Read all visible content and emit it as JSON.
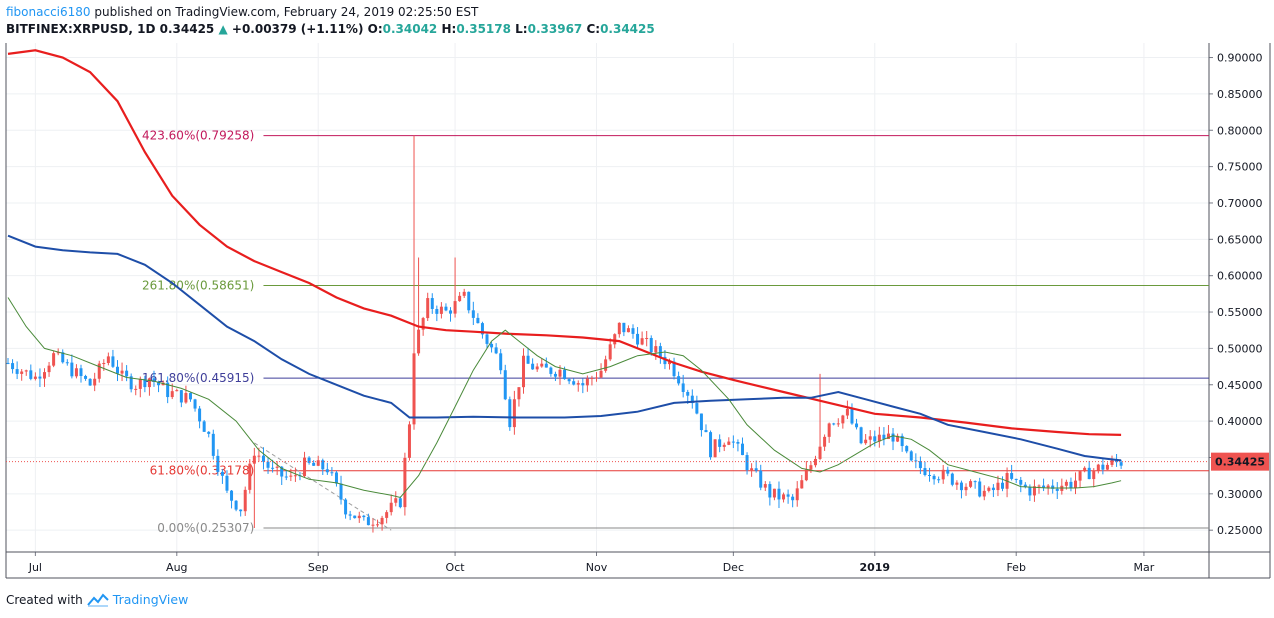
{
  "header": {
    "author": "fibonacci6180",
    "published_text": "published on TradingView.com, February 24, 2019 02:25:50 EST",
    "symbol": "BITFINEX:XRPUSD, 1D",
    "last": "0.34425",
    "arrow": "▲",
    "change": "+0.00379 (+1.11%)",
    "o_label": "O:",
    "o_value": "0.34042",
    "h_label": "H:",
    "h_value": "0.35178",
    "l_label": "L:",
    "l_value": "0.33967",
    "c_label": "C:",
    "c_value": "0.34425"
  },
  "footer": {
    "created_with": "Created with",
    "brand": "TradingView"
  },
  "colors": {
    "up": "#26a69a",
    "candle_up": "#ef5350",
    "candle_down": "#2196f3",
    "ma_red": "#e81e1e",
    "ma_blue": "#1e4ea8",
    "ma_green": "#4a8a3a",
    "fib_pink": "#c2185b",
    "fib_green": "#6a9a3c",
    "fib_blue": "#3f3f9a",
    "fib_red": "#e53935",
    "fib_gray": "#8a8a8a",
    "price_tag": "#ef5350"
  },
  "chart_data": {
    "type": "candlestick",
    "title": "BITFINEX:XRPUSD, 1D",
    "y_axis": {
      "range": [
        0.22,
        0.92
      ],
      "ticks": [
        "0.90000",
        "0.85000",
        "0.80000",
        "0.75000",
        "0.70000",
        "0.65000",
        "0.60000",
        "0.55000",
        "0.50000",
        "0.45000",
        "0.40000",
        "0.35000",
        "0.30000",
        "0.25000"
      ]
    },
    "x_axis": {
      "range_days": [
        0,
        217
      ],
      "ticks": [
        {
          "label": "Jul",
          "day": 6
        },
        {
          "label": "Aug",
          "day": 37
        },
        {
          "label": "Sep",
          "day": 68
        },
        {
          "label": "Oct",
          "day": 98
        },
        {
          "label": "Nov",
          "day": 129
        },
        {
          "label": "Dec",
          "day": 159
        },
        {
          "label": "2019",
          "day": 190,
          "bold": true
        },
        {
          "label": "Feb",
          "day": 221
        },
        {
          "label": "Mar",
          "day": 249
        }
      ]
    },
    "price_anchors": [
      [
        0,
        0.48
      ],
      [
        6,
        0.46
      ],
      [
        10,
        0.49
      ],
      [
        14,
        0.47
      ],
      [
        18,
        0.45
      ],
      [
        22,
        0.49
      ],
      [
        25,
        0.46
      ],
      [
        28,
        0.45
      ],
      [
        31,
        0.46
      ],
      [
        35,
        0.44
      ],
      [
        40,
        0.43
      ],
      [
        44,
        0.38
      ],
      [
        48,
        0.3
      ],
      [
        51,
        0.28
      ],
      [
        54,
        0.36
      ],
      [
        58,
        0.33
      ],
      [
        62,
        0.32
      ],
      [
        65,
        0.34
      ],
      [
        70,
        0.335
      ],
      [
        74,
        0.28
      ],
      [
        78,
        0.26
      ],
      [
        82,
        0.27
      ],
      [
        86,
        0.29
      ],
      [
        88,
        0.4
      ],
      [
        89,
        0.5
      ],
      [
        92,
        0.56
      ],
      [
        96,
        0.55
      ],
      [
        100,
        0.57
      ],
      [
        104,
        0.52
      ],
      [
        108,
        0.48
      ],
      [
        110,
        0.4
      ],
      [
        113,
        0.48
      ],
      [
        117,
        0.47
      ],
      [
        121,
        0.47
      ],
      [
        126,
        0.45
      ],
      [
        130,
        0.47
      ],
      [
        134,
        0.53
      ],
      [
        137,
        0.52
      ],
      [
        141,
        0.5
      ],
      [
        145,
        0.48
      ],
      [
        150,
        0.43
      ],
      [
        154,
        0.36
      ],
      [
        158,
        0.38
      ],
      [
        163,
        0.33
      ],
      [
        167,
        0.3
      ],
      [
        172,
        0.29
      ],
      [
        176,
        0.34
      ],
      [
        180,
        0.4
      ],
      [
        184,
        0.41
      ],
      [
        187,
        0.37
      ],
      [
        190,
        0.375
      ],
      [
        194,
        0.38
      ],
      [
        198,
        0.34
      ],
      [
        203,
        0.33
      ],
      [
        207,
        0.32
      ],
      [
        211,
        0.31
      ],
      [
        215,
        0.3
      ],
      [
        219,
        0.32
      ],
      [
        224,
        0.305
      ],
      [
        228,
        0.31
      ],
      [
        233,
        0.315
      ],
      [
        237,
        0.33
      ],
      [
        241,
        0.34
      ],
      [
        244,
        0.344
      ]
    ],
    "series": [
      {
        "name": "",
        "color": "#e81e1e",
        "points": [
          [
            0,
            0.905
          ],
          [
            6,
            0.91
          ],
          [
            12,
            0.9
          ],
          [
            18,
            0.88
          ],
          [
            24,
            0.84
          ],
          [
            30,
            0.77
          ],
          [
            36,
            0.71
          ],
          [
            42,
            0.67
          ],
          [
            48,
            0.64
          ],
          [
            54,
            0.62
          ],
          [
            60,
            0.605
          ],
          [
            66,
            0.59
          ],
          [
            72,
            0.57
          ],
          [
            78,
            0.555
          ],
          [
            84,
            0.545
          ],
          [
            90,
            0.53
          ],
          [
            96,
            0.525
          ],
          [
            102,
            0.523
          ],
          [
            110,
            0.52
          ],
          [
            118,
            0.518
          ],
          [
            126,
            0.515
          ],
          [
            134,
            0.51
          ],
          [
            140,
            0.495
          ],
          [
            146,
            0.48
          ],
          [
            152,
            0.468
          ],
          [
            160,
            0.455
          ],
          [
            170,
            0.44
          ],
          [
            180,
            0.425
          ],
          [
            190,
            0.41
          ],
          [
            200,
            0.405
          ],
          [
            210,
            0.398
          ],
          [
            220,
            0.39
          ],
          [
            230,
            0.385
          ],
          [
            237,
            0.382
          ],
          [
            244,
            0.381
          ]
        ]
      },
      {
        "name": "",
        "color": "#1e4ea8",
        "points": [
          [
            0,
            0.655
          ],
          [
            6,
            0.64
          ],
          [
            12,
            0.635
          ],
          [
            18,
            0.632
          ],
          [
            24,
            0.63
          ],
          [
            30,
            0.615
          ],
          [
            36,
            0.59
          ],
          [
            42,
            0.56
          ],
          [
            48,
            0.53
          ],
          [
            54,
            0.51
          ],
          [
            60,
            0.485
          ],
          [
            66,
            0.465
          ],
          [
            72,
            0.45
          ],
          [
            78,
            0.435
          ],
          [
            84,
            0.425
          ],
          [
            88,
            0.405
          ],
          [
            94,
            0.405
          ],
          [
            102,
            0.406
          ],
          [
            112,
            0.405
          ],
          [
            122,
            0.405
          ],
          [
            130,
            0.407
          ],
          [
            138,
            0.413
          ],
          [
            146,
            0.425
          ],
          [
            154,
            0.428
          ],
          [
            162,
            0.43
          ],
          [
            170,
            0.432
          ],
          [
            176,
            0.432
          ],
          [
            182,
            0.44
          ],
          [
            188,
            0.43
          ],
          [
            194,
            0.42
          ],
          [
            200,
            0.41
          ],
          [
            206,
            0.395
          ],
          [
            214,
            0.385
          ],
          [
            222,
            0.375
          ],
          [
            230,
            0.362
          ],
          [
            236,
            0.352
          ],
          [
            241,
            0.348
          ],
          [
            244,
            0.346
          ]
        ]
      },
      {
        "name": "",
        "color": "#4a8a3a",
        "points": [
          [
            0,
            0.57
          ],
          [
            4,
            0.53
          ],
          [
            8,
            0.5
          ],
          [
            14,
            0.49
          ],
          [
            20,
            0.475
          ],
          [
            26,
            0.46
          ],
          [
            32,
            0.455
          ],
          [
            38,
            0.445
          ],
          [
            44,
            0.43
          ],
          [
            50,
            0.4
          ],
          [
            55,
            0.36
          ],
          [
            60,
            0.335
          ],
          [
            66,
            0.32
          ],
          [
            72,
            0.315
          ],
          [
            78,
            0.305
          ],
          [
            84,
            0.298
          ],
          [
            86,
            0.295
          ],
          [
            90,
            0.325
          ],
          [
            94,
            0.37
          ],
          [
            98,
            0.42
          ],
          [
            102,
            0.47
          ],
          [
            106,
            0.51
          ],
          [
            109,
            0.525
          ],
          [
            112,
            0.51
          ],
          [
            116,
            0.49
          ],
          [
            120,
            0.475
          ],
          [
            126,
            0.465
          ],
          [
            132,
            0.475
          ],
          [
            138,
            0.49
          ],
          [
            144,
            0.495
          ],
          [
            148,
            0.49
          ],
          [
            152,
            0.47
          ],
          [
            158,
            0.43
          ],
          [
            162,
            0.395
          ],
          [
            168,
            0.36
          ],
          [
            174,
            0.335
          ],
          [
            178,
            0.33
          ],
          [
            182,
            0.34
          ],
          [
            186,
            0.355
          ],
          [
            190,
            0.37
          ],
          [
            194,
            0.38
          ],
          [
            198,
            0.375
          ],
          [
            202,
            0.36
          ],
          [
            206,
            0.34
          ],
          [
            212,
            0.33
          ],
          [
            218,
            0.32
          ],
          [
            222,
            0.31
          ],
          [
            228,
            0.308
          ],
          [
            234,
            0.308
          ],
          [
            238,
            0.31
          ],
          [
            242,
            0.315
          ],
          [
            244,
            0.318
          ]
        ]
      }
    ],
    "fib_levels": [
      {
        "label": "423.60%(0.79258)",
        "value": 0.79258,
        "color": "#c2185b"
      },
      {
        "label": "261.80%(0.58651)",
        "value": 0.58651,
        "color": "#6a9a3c"
      },
      {
        "label": "161.80%(0.45915)",
        "value": 0.45915,
        "color": "#3f3f9a"
      },
      {
        "label": "61.80%(0.33178)",
        "value": 0.33178,
        "color": "#e53935"
      },
      {
        "label": "0.00%(0.25307)",
        "value": 0.25307,
        "color": "#8a8a8a"
      }
    ],
    "current_price": {
      "label": "0.34425",
      "value": 0.34425
    },
    "trend_line": [
      [
        54,
        0.37
      ],
      [
        84,
        0.25
      ]
    ],
    "grid": true
  }
}
